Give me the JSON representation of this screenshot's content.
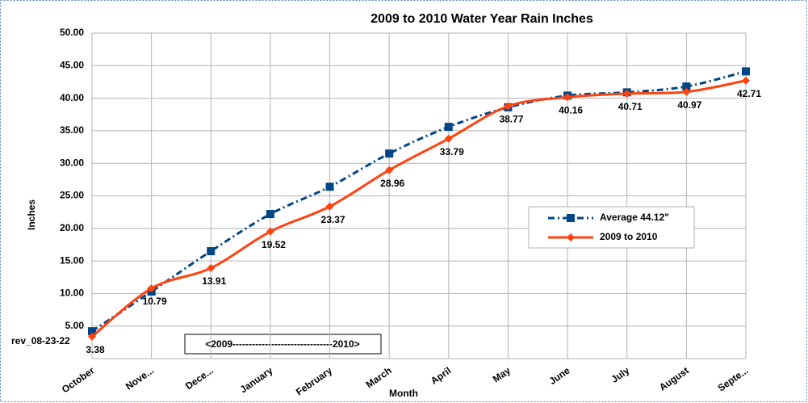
{
  "chart_data": {
    "type": "line",
    "title": "2009 to 2010 Water Year Rain Inches",
    "x_label": "Month",
    "y_label": "Inches",
    "annotations": [
      "rev_08-23-22",
      "<2009-------------------------------2010>"
    ],
    "categories": [
      "October",
      "Nove...",
      "Dece...",
      "January",
      "February",
      "March",
      "April",
      "May",
      "June",
      "July",
      "August",
      "Septe..."
    ],
    "series": [
      {
        "name": "Average 44.12\"",
        "color": "#004586",
        "line_style": "dash-dot",
        "marker": "square",
        "values": [
          4.2,
          10.3,
          16.5,
          22.2,
          26.4,
          31.5,
          35.6,
          38.6,
          40.4,
          40.9,
          41.8,
          44.12
        ]
      },
      {
        "name": "2009 to 2010",
        "color": "#ff420e",
        "line_style": "solid",
        "marker": "diamond",
        "data_labels": true,
        "values": [
          3.38,
          10.79,
          13.91,
          19.52,
          23.37,
          28.96,
          33.79,
          38.77,
          40.16,
          40.71,
          40.97,
          42.71
        ]
      }
    ],
    "ylim": [
      0,
      50
    ],
    "yticks": [
      {
        "value": 5,
        "label": "5.00"
      },
      {
        "value": 10,
        "label": "10.00"
      },
      {
        "value": 15,
        "label": "15.00"
      },
      {
        "value": 20,
        "label": "20.00"
      },
      {
        "value": 25,
        "label": "25.00"
      },
      {
        "value": 30,
        "label": "30.00"
      },
      {
        "value": 35,
        "label": "35.00"
      },
      {
        "value": 40,
        "label": "40.00"
      },
      {
        "value": 45,
        "label": "45.00"
      },
      {
        "value": 50,
        "label": "50.00"
      }
    ],
    "grid": true,
    "legend": "right"
  }
}
